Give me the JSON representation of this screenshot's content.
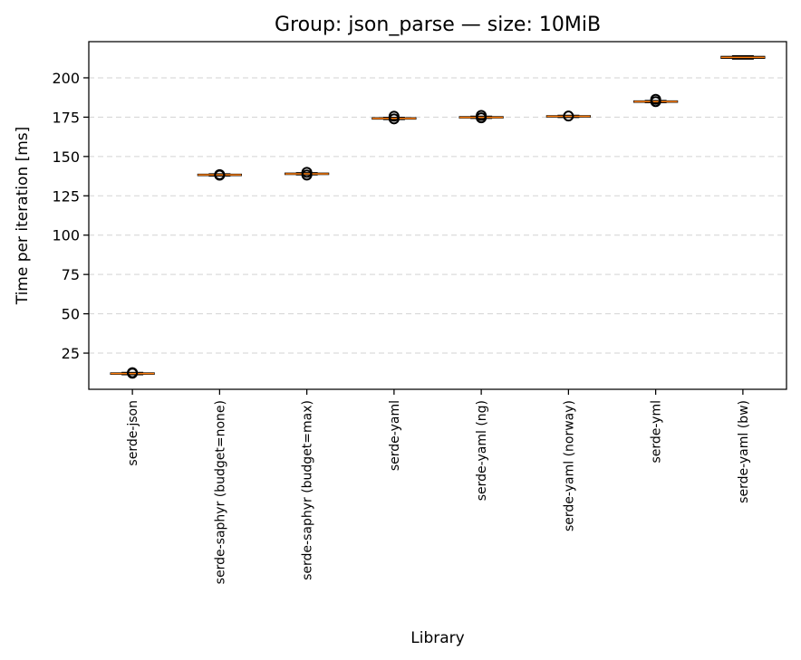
{
  "chart_data": {
    "type": "box",
    "title": "Group: json_parse — size: 10MiB",
    "xlabel": "Library",
    "ylabel": "Time per iteration [ms]",
    "ylim": [
      2,
      223
    ],
    "yticks": [
      25,
      50,
      75,
      100,
      125,
      150,
      175,
      200
    ],
    "grid": "y-dashed",
    "categories": [
      "serde-json",
      "serde-saphyr (budget=none)",
      "serde-saphyr (budget=max)",
      "serde-yaml",
      "serde-yaml (ng)",
      "serde-yaml (norway)",
      "serde-yml",
      "serde-yaml (bw)"
    ],
    "boxes": [
      {
        "q1": 11.6,
        "median": 12.0,
        "q3": 12.4,
        "whislo": 11.3,
        "whishi": 12.7,
        "fliers": [
          12.2,
          12.6
        ]
      },
      {
        "q1": 137.9,
        "median": 138.3,
        "q3": 138.7,
        "whislo": 137.6,
        "whishi": 139.0,
        "fliers": [
          138.1,
          138.5
        ]
      },
      {
        "q1": 138.6,
        "median": 139.0,
        "q3": 139.4,
        "whislo": 138.3,
        "whishi": 139.7,
        "fliers": [
          138.2,
          139.9
        ]
      },
      {
        "q1": 173.8,
        "median": 174.2,
        "q3": 174.6,
        "whislo": 173.5,
        "whishi": 174.9,
        "fliers": [
          173.9,
          175.6
        ]
      },
      {
        "q1": 174.5,
        "median": 174.9,
        "q3": 175.3,
        "whislo": 174.2,
        "whishi": 175.6,
        "fliers": [
          174.6,
          176.1
        ]
      },
      {
        "q1": 175.1,
        "median": 175.5,
        "q3": 175.9,
        "whislo": 174.8,
        "whishi": 176.2,
        "fliers": [
          175.7
        ]
      },
      {
        "q1": 184.5,
        "median": 184.9,
        "q3": 185.3,
        "whislo": 184.2,
        "whishi": 185.6,
        "fliers": [
          184.9,
          186.3
        ]
      },
      {
        "q1": 212.4,
        "median": 213.0,
        "q3": 213.6,
        "whislo": 211.9,
        "whishi": 214.0,
        "fliers": []
      }
    ],
    "colors": {
      "median": "#ff7f0e",
      "box": "#000000",
      "grid": "#b0b0b0"
    }
  }
}
